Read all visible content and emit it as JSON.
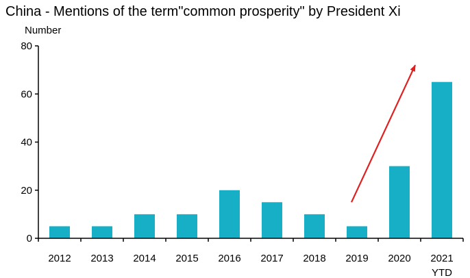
{
  "title": "China - Mentions of the term\"common prosperity\" by President Xi",
  "chart_data": {
    "type": "bar",
    "title": "China - Mentions of the term\"common prosperity\" by President Xi",
    "ylabel": "Number",
    "xlabel": "",
    "categories": [
      "2012",
      "2013",
      "2014",
      "2015",
      "2016",
      "2017",
      "2018",
      "2019",
      "2020",
      "2021"
    ],
    "category_sublabels": [
      "",
      "",
      "",
      "",
      "",
      "",
      "",
      "",
      "",
      "YTD"
    ],
    "values": [
      5,
      5,
      10,
      10,
      20,
      15,
      10,
      5,
      30,
      65
    ],
    "ylim": [
      0,
      80
    ],
    "yticks": [
      0,
      20,
      40,
      60,
      80
    ],
    "grid": false,
    "bar_color": "#17AFC6",
    "annotations": [
      {
        "type": "arrow",
        "color": "#E02020",
        "from": {
          "x": "2019",
          "y": 15
        },
        "to": {
          "x": "2020",
          "y": 72
        }
      }
    ]
  }
}
